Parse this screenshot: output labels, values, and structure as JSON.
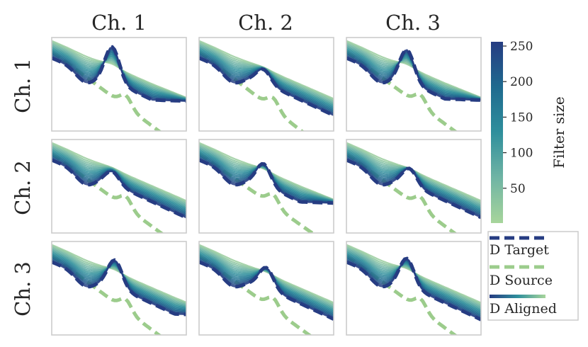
{
  "chart_data": {
    "type": "line",
    "column_titles": [
      "Ch. 1",
      "Ch. 2",
      "Ch. 3"
    ],
    "row_titles": [
      "Ch. 1",
      "Ch. 2",
      "Ch. 3"
    ],
    "colorbar": {
      "label": "Filter size",
      "ticks": [
        50,
        100,
        150,
        200,
        250
      ],
      "range": [
        1,
        256
      ],
      "colors": [
        "#a7d59b",
        "#6fb4a4",
        "#2f8f9c",
        "#1f6a8f",
        "#263c82"
      ]
    },
    "aligned_series_filter_sizes": [
      16,
      32,
      48,
      64,
      80,
      96,
      112,
      128,
      144,
      160,
      176,
      192,
      208,
      224,
      240,
      256
    ],
    "legend": {
      "entries": [
        {
          "label": "D Target",
          "style": "dashed",
          "color": "#263c82"
        },
        {
          "label": "D Source",
          "style": "dashed",
          "color": "#9ccc8c"
        },
        {
          "label": "D Aligned",
          "style": "gradient",
          "color_start": "#263c82",
          "color_end": "#a7d59b"
        }
      ]
    },
    "panels": [
      {
        "row": "Ch. 1",
        "col": "Ch. 1",
        "peak_x": 0.45,
        "peak_y": 0.88,
        "tail_y": 0.32,
        "source_shift": 0.48
      },
      {
        "row": "Ch. 1",
        "col": "Ch. 2",
        "peak_x": 0.48,
        "peak_y": 0.64,
        "tail_y": 0.06,
        "source_shift": 0.62
      },
      {
        "row": "Ch. 1",
        "col": "Ch. 3",
        "peak_x": 0.45,
        "peak_y": 0.85,
        "tail_y": 0.33,
        "source_shift": 0.45
      },
      {
        "row": "Ch. 2",
        "col": "Ch. 1",
        "peak_x": 0.45,
        "peak_y": 0.64,
        "tail_y": 0.04,
        "source_shift": 0.42
      },
      {
        "row": "Ch. 2",
        "col": "Ch. 2",
        "peak_x": 0.48,
        "peak_y": 0.72,
        "tail_y": 0.32,
        "source_shift": 0.32
      },
      {
        "row": "Ch. 2",
        "col": "Ch. 3",
        "peak_x": 0.47,
        "peak_y": 0.67,
        "tail_y": 0.06,
        "source_shift": 0.46
      },
      {
        "row": "Ch. 3",
        "col": "Ch. 1",
        "peak_x": 0.47,
        "peak_y": 0.78,
        "tail_y": 0.22,
        "source_shift": 0.48
      },
      {
        "row": "Ch. 3",
        "col": "Ch. 2",
        "peak_x": 0.5,
        "peak_y": 0.7,
        "tail_y": 0.05,
        "source_shift": 0.4
      },
      {
        "row": "Ch. 3",
        "col": "Ch. 3",
        "peak_x": 0.45,
        "peak_y": 0.8,
        "tail_y": 0.15,
        "source_shift": 0.45
      }
    ]
  }
}
